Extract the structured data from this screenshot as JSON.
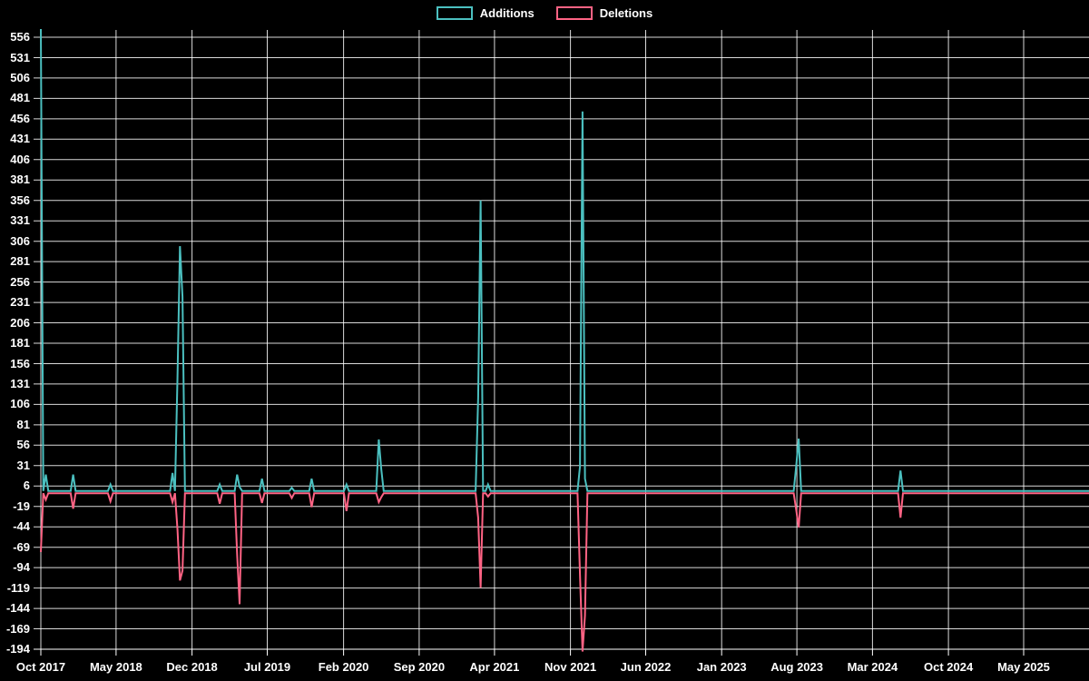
{
  "page": {
    "background": "#000000",
    "text_color": "#ffffff",
    "grid_color": "#ffffff"
  },
  "legend": {
    "position": "top",
    "items": [
      {
        "label": "Additions",
        "color": "#4bc0c0"
      },
      {
        "label": "Deletions",
        "color": "#ff6384"
      }
    ]
  },
  "chart_data": {
    "type": "line",
    "title": "",
    "xlabel": "",
    "ylabel": "",
    "grid": true,
    "legend_position": "top",
    "series": [
      {
        "name": "Additions",
        "color": "#4bc0c0",
        "baseline": 0
      },
      {
        "name": "Deletions",
        "color": "#ff6384",
        "baseline": 0
      }
    ],
    "x_axis": {
      "start_date": "2017-10-01",
      "end_date": "2025-11-01",
      "tick_dates": [
        "2017-10-01",
        "2018-05-01",
        "2018-12-01",
        "2019-07-01",
        "2020-02-01",
        "2020-09-01",
        "2021-04-01",
        "2021-11-01",
        "2022-06-01",
        "2023-01-01",
        "2023-08-01",
        "2024-03-01",
        "2024-10-01",
        "2025-05-01"
      ],
      "tick_labels": [
        "Oct 2017",
        "May 2018",
        "Dec 2018",
        "Jul 2019",
        "Feb 2020",
        "Sep 2020",
        "Apr 2021",
        "Nov 2021",
        "Jun 2022",
        "Jan 2023",
        "Aug 2023",
        "Mar 2024",
        "Oct 2024",
        "May 2025"
      ]
    },
    "y_axis": {
      "min": -194,
      "max": 566,
      "tick_min": -194,
      "tick_max": 556,
      "tick_step": 25,
      "tick_labels": [
        "556",
        "531",
        "506",
        "481",
        "456",
        "431",
        "406",
        "381",
        "356",
        "331",
        "306",
        "281",
        "256",
        "231",
        "206",
        "181",
        "156",
        "131",
        "106",
        "81",
        "56",
        "31",
        "6",
        "-19",
        "-44",
        "-69",
        "-94",
        "-119",
        "-144",
        "-169",
        "-194"
      ]
    },
    "weekly_events": [
      {
        "date": "2017-10-01",
        "additions": 566,
        "deletions": -72
      },
      {
        "date": "2017-10-15",
        "additions": 20,
        "deletions": -8
      },
      {
        "date": "2017-12-31",
        "additions": 20,
        "deletions": -19
      },
      {
        "date": "2018-04-15",
        "additions": 8,
        "deletions": -10
      },
      {
        "date": "2018-10-07",
        "additions": 22,
        "deletions": -11
      },
      {
        "date": "2018-10-21",
        "additions": 140,
        "deletions": -45
      },
      {
        "date": "2018-10-28",
        "additions": 300,
        "deletions": -107
      },
      {
        "date": "2018-11-04",
        "additions": 238,
        "deletions": -95
      },
      {
        "date": "2019-02-17",
        "additions": 8,
        "deletions": -13
      },
      {
        "date": "2019-04-07",
        "additions": 20,
        "deletions": -75
      },
      {
        "date": "2019-04-14",
        "additions": 5,
        "deletions": -136
      },
      {
        "date": "2019-06-16",
        "additions": 15,
        "deletions": -12
      },
      {
        "date": "2019-09-08",
        "additions": 4,
        "deletions": -6
      },
      {
        "date": "2019-11-03",
        "additions": 15,
        "deletions": -17
      },
      {
        "date": "2020-02-09",
        "additions": 8,
        "deletions": -22
      },
      {
        "date": "2020-05-10",
        "additions": 63,
        "deletions": -11
      },
      {
        "date": "2020-05-17",
        "additions": 27,
        "deletions": -5
      },
      {
        "date": "2021-02-14",
        "additions": 114,
        "deletions": -30
      },
      {
        "date": "2021-02-21",
        "additions": 356,
        "deletions": -116
      },
      {
        "date": "2021-03-14",
        "additions": 8,
        "deletions": -4
      },
      {
        "date": "2021-11-28",
        "additions": 30,
        "deletions": -100
      },
      {
        "date": "2021-12-05",
        "additions": 465,
        "deletions": -194
      },
      {
        "date": "2021-12-12",
        "additions": 15,
        "deletions": -150
      },
      {
        "date": "2023-07-30",
        "additions": 30,
        "deletions": -20
      },
      {
        "date": "2023-08-06",
        "additions": 64,
        "deletions": -42
      },
      {
        "date": "2024-05-19",
        "additions": 25,
        "deletions": -30
      }
    ]
  }
}
